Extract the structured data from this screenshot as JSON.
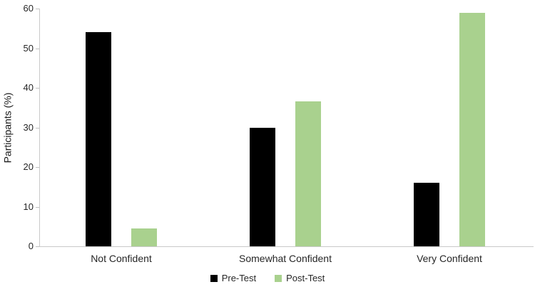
{
  "chart_data": {
    "type": "bar",
    "title": "",
    "categories": [
      "Not Confident",
      "Somewhat Confident",
      "Very Confident"
    ],
    "series": [
      {
        "name": "Pre-Test",
        "color": "#000000",
        "values": [
          54,
          30,
          16
        ]
      },
      {
        "name": "Post-Test",
        "color": "#a9d18e",
        "values": [
          4.5,
          36.5,
          59
        ]
      }
    ],
    "xlabel": "",
    "ylabel": "Participants (%)",
    "ylim": [
      0,
      60
    ],
    "ytick_interval": 10,
    "grid": false,
    "legend_position": "bottom",
    "axis_color": "#c9c9c9",
    "text_color": "#262626"
  }
}
